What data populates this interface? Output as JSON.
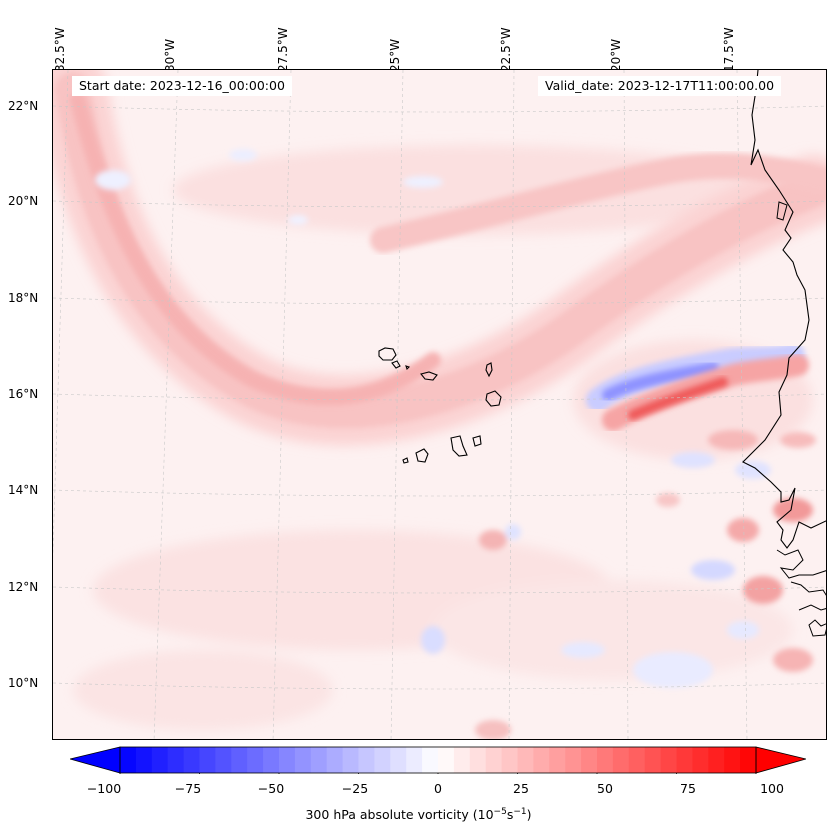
{
  "header": {
    "start_date": "Start date: 2023-12-16_00:00:00",
    "valid_date": "Valid_date: 2023-12-17T11:00:00.00"
  },
  "map": {
    "longitude_labels": [
      "32.5°W",
      "30°W",
      "27.5°W",
      "25°W",
      "22.5°W",
      "20°W",
      "17.5°W"
    ],
    "latitude_labels": [
      "22°N",
      "20°N",
      "18°N",
      "16°N",
      "14°N",
      "12°N",
      "10°N"
    ],
    "coastline_color": "#000000",
    "gridline_style": "dashed-grey"
  },
  "colorbar": {
    "ticks": [
      "−100",
      "−75",
      "−50",
      "−25",
      "0",
      "25",
      "50",
      "75",
      "100"
    ],
    "label": "300 hPa absolute vorticity (10",
    "label_exp1": "−5",
    "label_mid": "s",
    "label_exp2": "−1",
    "label_end": ")",
    "min": -100,
    "max": 100,
    "levels": 40,
    "cmap": "bwr",
    "extend": "both"
  }
}
